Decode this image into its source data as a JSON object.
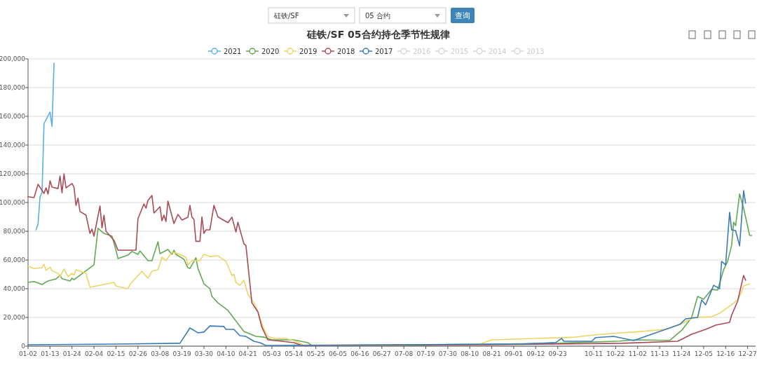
{
  "chart_data": [
    {
      "type": "other",
      "annotations": [
        "硅铁/SF",
        "05 合约",
        "查询"
      ]
    },
    {
      "type": "line",
      "title": "硅铁/SF 05合约持仓季节性规律",
      "legend": "top",
      "grid": "y",
      "xlim": [
        "--01-02",
        "--12-31"
      ],
      "xticks": [
        {
          "value": "--01-02",
          "label": "01-02"
        },
        {
          "value": "--01-13",
          "label": "01-13"
        },
        {
          "value": "--01-24",
          "label": "01-24"
        },
        {
          "value": "--02-04",
          "label": "02-04"
        },
        {
          "value": "--02-15",
          "label": "02-15"
        },
        {
          "value": "--02-26",
          "label": "02-26"
        },
        {
          "value": "--03-08",
          "label": "03-08"
        },
        {
          "value": "--03-19",
          "label": "03-19"
        },
        {
          "value": "--03-30",
          "label": "03-30"
        },
        {
          "value": "--04-10",
          "label": "04-10"
        },
        {
          "value": "--04-21",
          "label": "04-21"
        },
        {
          "value": "--05-03",
          "label": "05-03"
        },
        {
          "value": "--05-14",
          "label": "05-14"
        },
        {
          "value": "--05-25",
          "label": "05-25"
        },
        {
          "value": "--06-05",
          "label": "06-05"
        },
        {
          "value": "--06-16",
          "label": "06-16"
        },
        {
          "value": "--06-27",
          "label": "06-27"
        },
        {
          "value": "--07-08",
          "label": "07-08"
        },
        {
          "value": "--07-19",
          "label": "07-19"
        },
        {
          "value": "--07-30",
          "label": "07-30"
        },
        {
          "value": "--08-10",
          "label": "08-10"
        },
        {
          "value": "--08-21",
          "label": "08-21"
        },
        {
          "value": "--09-01",
          "label": "09-01"
        },
        {
          "value": "--09-12",
          "label": "09-12"
        },
        {
          "value": "--09-23",
          "label": "09-23"
        },
        {
          "value": "--10-11",
          "label": "10-11"
        },
        {
          "value": "--10-22",
          "label": "10-22"
        },
        {
          "value": "--11-02",
          "label": "11-02"
        },
        {
          "value": "--11-13",
          "label": "11-13"
        },
        {
          "value": "--11-24",
          "label": "11-24"
        },
        {
          "value": "--12-05",
          "label": "12-05"
        },
        {
          "value": "--12-16",
          "label": "12-16"
        },
        {
          "value": "--12-27",
          "label": "12-27"
        }
      ],
      "ylim": [
        0,
        200000
      ],
      "yticks": [
        0,
        {
          "value": 20000,
          "label": "20,000"
        },
        {
          "value": 40000,
          "label": "40,000"
        },
        {
          "value": 60000,
          "label": "60,000"
        },
        {
          "value": 80000,
          "label": "80,000"
        },
        {
          "value": 100000,
          "label": "100,000"
        },
        {
          "value": 120000,
          "label": "120,000"
        },
        {
          "value": 140000,
          "label": "140,000"
        },
        {
          "value": 160000,
          "label": "160,000"
        },
        {
          "value": 180000,
          "label": "180,000"
        },
        {
          "value": 200000,
          "label": "200,000"
        }
      ],
      "series": [
        {
          "name": "2021",
          "color": "#5aafe8",
          "x": [
            "--01-06",
            "--01-07",
            "--01-08",
            "--01-09",
            "--01-10",
            "--01-13",
            "--01-14",
            "--01-15"
          ],
          "values": [
            81000,
            85000,
            104000,
            107000,
            155000,
            163000,
            153000,
            197000
          ]
        },
        {
          "name": "2020",
          "color": "#62a855",
          "x": [
            "--01-02",
            "--01-05",
            "--01-09",
            "--01-12",
            "--01-16",
            "--01-18",
            "--01-19",
            "--01-23",
            "--01-24",
            "--01-25",
            "--02-04",
            "--02-06",
            "--02-09",
            "--02-13",
            "--02-15",
            "--02-16",
            "--02-21",
            "--02-23",
            "--02-26",
            "--02-27",
            "--03-02",
            "--03-04",
            "--03-07",
            "--03-08",
            "--03-12",
            "--03-14",
            "--03-15",
            "--03-16",
            "--03-20",
            "--03-22",
            "--03-23",
            "--03-26",
            "--03-27",
            "--03-30",
            "--04-02",
            "--04-03",
            "--04-06",
            "--04-11",
            "--04-19",
            "--04-25",
            "--04-29",
            "--05-03",
            "--05-14",
            "--05-21",
            "--05-23",
            "--07-19",
            "--07-30",
            "--08-21",
            "--09-23",
            "--10-24",
            "--11-01",
            "--11-18",
            "--11-24",
            "--11-29",
            "--12-02",
            "--12-05",
            "--12-09",
            "--12-12",
            "--12-15",
            "--12-17",
            "--12-19",
            "--12-20",
            "--12-21",
            "--12-23",
            "--12-25",
            "--12-28",
            "--12-29"
          ],
          "values": [
            44400,
            45000,
            42900,
            45400,
            46800,
            49300,
            47000,
            45400,
            47300,
            46300,
            56600,
            82000,
            78500,
            76600,
            66800,
            61000,
            63400,
            65900,
            63900,
            66300,
            59500,
            59500,
            72700,
            64400,
            67300,
            63900,
            66800,
            63900,
            60500,
            54600,
            54100,
            61500,
            54100,
            43400,
            40000,
            34600,
            30200,
            24900,
            10200,
            6800,
            6300,
            4400,
            4400,
            2400,
            500,
            500,
            1200,
            1500,
            2000,
            3500,
            4400,
            4000,
            11000,
            20000,
            34600,
            32700,
            39500,
            39000,
            53200,
            59000,
            70200,
            86300,
            83900,
            105900,
            96100,
            77100,
            77100
          ]
        },
        {
          "name": "2019",
          "color": "#ecd564",
          "x": [
            "--01-02",
            "--01-05",
            "--01-09",
            "--01-10",
            "--01-11",
            "--01-13",
            "--01-14",
            "--01-17",
            "--01-18",
            "--01-20",
            "--01-22",
            "--01-24",
            "--01-25",
            "--01-26",
            "--01-31",
            "--02-02",
            "--02-14",
            "--02-15",
            "--02-16",
            "--02-21",
            "--02-22",
            "--02-28",
            "--03-02",
            "--03-04",
            "--03-07",
            "--03-09",
            "--03-11",
            "--03-14",
            "--03-16",
            "--03-21",
            "--03-22",
            "--03-24",
            "--03-28",
            "--03-30",
            "--04-02",
            "--04-06",
            "--04-10",
            "--04-13",
            "--04-14",
            "--04-15",
            "--04-17",
            "--04-19",
            "--04-21",
            "--04-24",
            "--04-26",
            "--04-29",
            "--05-01",
            "--05-04",
            "--05-10",
            "--05-15",
            "--05-19",
            "--06-27",
            "--07-30",
            "--08-15",
            "--08-21",
            "--10-02",
            "--10-11",
            "--10-25",
            "--10-31",
            "--11-16",
            "--11-24",
            "--11-30",
            "--12-09",
            "--12-13",
            "--12-18",
            "--12-22",
            "--12-24",
            "--12-25",
            "--12-28"
          ],
          "values": [
            55600,
            54000,
            54600,
            57000,
            52700,
            55000,
            52500,
            50700,
            48300,
            53700,
            48300,
            50700,
            49500,
            53200,
            50700,
            41000,
            44400,
            42000,
            41500,
            40000,
            42900,
            52200,
            47300,
            52200,
            53200,
            62000,
            59500,
            65400,
            64900,
            62000,
            56600,
            59500,
            59500,
            63900,
            62400,
            62900,
            59000,
            49300,
            50000,
            44400,
            42400,
            45900,
            36100,
            30200,
            23900,
            11700,
            6800,
            5400,
            5400,
            3400,
            500,
            800,
            1000,
            1500,
            4400,
            6300,
            7800,
            9300,
            9800,
            11700,
            15600,
            20000,
            20500,
            22900,
            27800,
            32200,
            37600,
            42000,
            43400
          ]
        },
        {
          "name": "2018",
          "color": "#a94b57",
          "x": [
            "--01-02",
            "--01-05",
            "--01-07",
            "--01-10",
            "--01-11",
            "--01-12",
            "--01-13",
            "--01-14",
            "--01-17",
            "--01-18",
            "--01-19",
            "--01-20",
            "--01-21",
            "--01-24",
            "--01-25",
            "--01-26",
            "--01-27",
            "--01-28",
            "--01-31",
            "--02-02",
            "--02-03",
            "--02-04",
            "--02-07",
            "--02-08",
            "--02-09",
            "--02-10",
            "--02-14",
            "--02-16",
            "--02-25",
            "--02-26",
            "--02-29",
            "--03-01",
            "--03-02",
            "--03-04",
            "--03-05",
            "--03-08",
            "--03-09",
            "--03-10",
            "--03-11",
            "--03-12",
            "--03-15",
            "--03-17",
            "--03-19",
            "--03-22",
            "--03-23",
            "--03-24",
            "--03-25",
            "--03-26",
            "--03-28",
            "--03-29",
            "--03-30",
            "--03-31",
            "--04-02",
            "--04-04",
            "--04-06",
            "--04-11",
            "--04-13",
            "--04-15",
            "--04-16",
            "--04-19",
            "--04-20",
            "--04-23",
            "--04-26",
            "--04-28",
            "--05-01",
            "--05-08",
            "--05-14",
            "--05-18",
            "--08-21",
            "--10-25",
            "--11-22",
            "--11-29",
            "--12-06",
            "--12-11",
            "--12-18",
            "--12-19",
            "--12-22",
            "--12-25",
            "--12-26"
          ],
          "values": [
            104000,
            103400,
            112700,
            106300,
            110200,
            105900,
            115100,
            110700,
            109700,
            118500,
            106800,
            120000,
            110200,
            113200,
            110700,
            98000,
            103000,
            93700,
            91200,
            78500,
            81500,
            76600,
            97600,
            82400,
            91200,
            80000,
            73700,
            66800,
            66800,
            88800,
            99000,
            96100,
            101500,
            104900,
            92700,
            97100,
            87300,
            91200,
            86800,
            101000,
            85400,
            91700,
            87800,
            89800,
            98000,
            89800,
            88300,
            73000,
            73000,
            90000,
            78500,
            81000,
            81000,
            98000,
            90000,
            86000,
            89800,
            79500,
            86300,
            71200,
            70200,
            30200,
            23900,
            13200,
            4400,
            3400,
            2400,
            500,
            1000,
            2000,
            3400,
            8300,
            11700,
            14600,
            16600,
            21500,
            31200,
            49300,
            45900
          ]
        },
        {
          "name": "2017",
          "color": "#3b7cb4",
          "x": [
            "--01-02",
            "--02-15",
            "--03-18",
            "--03-23",
            "--03-27",
            "--03-30",
            "--04-02",
            "--04-09",
            "--04-10",
            "--04-14",
            "--04-17",
            "--04-20",
            "--04-24",
            "--04-27",
            "--04-30",
            "--09-05",
            "--09-22",
            "--09-25",
            "--09-26",
            "--10-10",
            "--10-12",
            "--10-21",
            "--10-31",
            "--11-23",
            "--11-26",
            "--12-02",
            "--12-04",
            "--12-06",
            "--12-10",
            "--12-13",
            "--12-14",
            "--12-16",
            "--12-18",
            "--12-19",
            "--12-21",
            "--12-23",
            "--12-25",
            "--12-26"
          ],
          "values": [
            1000,
            1500,
            2000,
            12700,
            9300,
            9800,
            14100,
            13700,
            11700,
            11700,
            7300,
            6800,
            3400,
            2400,
            500,
            1500,
            2500,
            5400,
            3400,
            3400,
            6000,
            6800,
            3900,
            15100,
            19000,
            20000,
            32200,
            28800,
            42400,
            40000,
            59000,
            56600,
            93200,
            81000,
            80500,
            69800,
            108300,
            99500
          ]
        },
        {
          "name": "2016",
          "color": "#d6d6d6"
        },
        {
          "name": "2015",
          "color": "#d6d6d6"
        },
        {
          "name": "2014",
          "color": "#d6d6d6"
        },
        {
          "name": "2013",
          "color": "#d6d6d6"
        }
      ]
    }
  ]
}
